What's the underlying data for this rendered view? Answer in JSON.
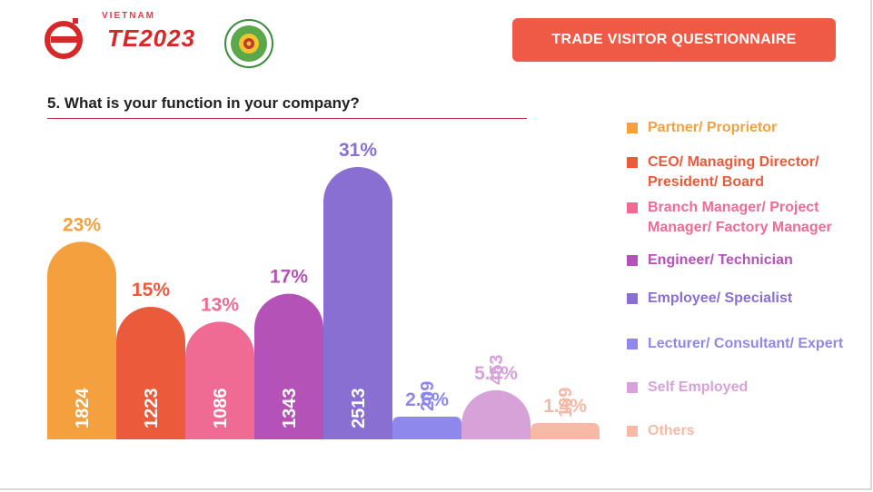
{
  "header": {
    "logo_top": "VIETNAM",
    "logo_text": "TE2023",
    "button_label": "TRADE VISITOR QUESTIONNAIRE"
  },
  "question": "5. What is your function in your company?",
  "colors": {
    "accent": "#ee5a45",
    "rule": "#b5303a"
  },
  "chart_data": {
    "type": "bar",
    "categories": [
      "Partner/ Proprietor",
      "CEO/ Managing Director/ President/ Board",
      "Branch Manager/ Project Manager/ Factory Manager",
      "Engineer/ Technician",
      "Employee/ Specialist",
      "Lecturer/ Consultant/ Expert",
      "Self Employed",
      "Others"
    ],
    "values": [
      1824,
      1223,
      1086,
      1343,
      2513,
      209,
      453,
      109
    ],
    "percent_labels": [
      "23%",
      "15%",
      "13%",
      "17%",
      "31%",
      "2.6%",
      "5.6%",
      "1.4%"
    ],
    "colors": [
      "#f4a03f",
      "#ec5a3c",
      "#f06b94",
      "#b452b8",
      "#8a6fd2",
      "#8f88ec",
      "#d6a2d8",
      "#f7b9a6"
    ],
    "label_colors": [
      "#f4a03f",
      "#ec5a3c",
      "#f06b94",
      "#b452b8",
      "#8a6fd2",
      "#8f88ec",
      "#d6a2d8",
      "#f7b9a6"
    ],
    "legend_label_colors": [
      "#f4a03f",
      "#ec5a3c",
      "#f06b94",
      "#b452b8",
      "#8a6fd2",
      "#8f88ec",
      "#d6a2d8",
      "#f7b9a6"
    ],
    "legend_position": "right",
    "ylim": [
      0,
      2513
    ],
    "grid": false
  }
}
